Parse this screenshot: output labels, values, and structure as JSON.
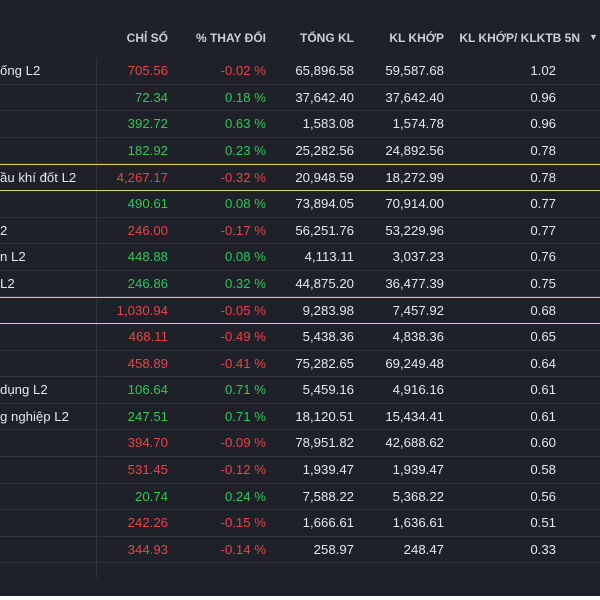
{
  "header": {
    "chi_so": "CHỈ SỐ",
    "thay_doi": "% THAY ĐỔI",
    "tong_kl": "TỔNG KL",
    "kl_khop": "KL KHỚP",
    "ratio": "KL KHỚP/ KLKTB 5N"
  },
  "colors": {
    "up": "#2fc65a",
    "down": "#e8434a",
    "highlight": "#d8d64a"
  },
  "rows": [
    {
      "name": "ống L2",
      "index": "705.56",
      "change": "-0.02 %",
      "dir": "down",
      "total": "65,896.58",
      "matched": "59,587.68",
      "ratio": "1.02",
      "hl": false
    },
    {
      "name": "",
      "index": "72.34",
      "change": "0.18 %",
      "dir": "up",
      "total": "37,642.40",
      "matched": "37,642.40",
      "ratio": "0.96",
      "hl": false
    },
    {
      "name": "",
      "index": "392.72",
      "change": "0.63 %",
      "dir": "up",
      "total": "1,583.08",
      "matched": "1,574.78",
      "ratio": "0.96",
      "hl": false
    },
    {
      "name": "",
      "index": "182.92",
      "change": "0.23 %",
      "dir": "up",
      "total": "25,282.56",
      "matched": "24,892.56",
      "ratio": "0.78",
      "hl": false
    },
    {
      "name": "ầu khí đốt L2",
      "index": "4,267.17",
      "change": "-0.32 %",
      "dir": "down",
      "total": "20,948.59",
      "matched": "18,272.99",
      "ratio": "0.78",
      "hl": true
    },
    {
      "name": "",
      "index": "490.61",
      "change": "0.08 %",
      "dir": "up",
      "total": "73,894.05",
      "matched": "70,914.00",
      "ratio": "0.77",
      "hl": false
    },
    {
      "name": "2",
      "index": "246.00",
      "change": "-0.17 %",
      "dir": "down",
      "total": "56,251.76",
      "matched": "53,229.96",
      "ratio": "0.77",
      "hl": false
    },
    {
      "name": "n L2",
      "index": "448.88",
      "change": "0.08 %",
      "dir": "up",
      "total": "4,113.11",
      "matched": "3,037.23",
      "ratio": "0.76",
      "hl": false
    },
    {
      "name": "L2",
      "index": "246.86",
      "change": "0.32 %",
      "dir": "up",
      "total": "44,875.20",
      "matched": "36,477.39",
      "ratio": "0.75",
      "hl": false
    },
    {
      "name": "",
      "index": "1,030.94",
      "change": "-0.05 %",
      "dir": "down",
      "total": "9,283.98",
      "matched": "7,457.92",
      "ratio": "0.68",
      "hl": true
    },
    {
      "name": "",
      "index": "468.11",
      "change": "-0.49 %",
      "dir": "down",
      "total": "5,438.36",
      "matched": "4,838.36",
      "ratio": "0.65",
      "hl": false
    },
    {
      "name": "",
      "index": "458.89",
      "change": "-0.41 %",
      "dir": "down",
      "total": "75,282.65",
      "matched": "69,249.48",
      "ratio": "0.64",
      "hl": false
    },
    {
      "name": "dụng L2",
      "index": "106.64",
      "change": "0.71 %",
      "dir": "up",
      "total": "5,459.16",
      "matched": "4,916.16",
      "ratio": "0.61",
      "hl": false
    },
    {
      "name": "g nghiệp L2",
      "index": "247.51",
      "change": "0.71 %",
      "dir": "up",
      "total": "18,120.51",
      "matched": "15,434.41",
      "ratio": "0.61",
      "hl": false
    },
    {
      "name": "",
      "index": "394.70",
      "change": "-0.09 %",
      "dir": "down",
      "total": "78,951.82",
      "matched": "42,688.62",
      "ratio": "0.60",
      "hl": false
    },
    {
      "name": "",
      "index": "531.45",
      "change": "-0.12 %",
      "dir": "down",
      "total": "1,939.47",
      "matched": "1,939.47",
      "ratio": "0.58",
      "hl": false
    },
    {
      "name": "",
      "index": "20.74",
      "change": "0.24 %",
      "dir": "up",
      "total": "7,588.22",
      "matched": "5,368.22",
      "ratio": "0.56",
      "hl": false
    },
    {
      "name": "",
      "index": "242.26",
      "change": "-0.15 %",
      "dir": "down",
      "total": "1,666.61",
      "matched": "1,636.61",
      "ratio": "0.51",
      "hl": false
    },
    {
      "name": "",
      "index": "344.93",
      "change": "-0.14 %",
      "dir": "down",
      "total": "258.97",
      "matched": "248.47",
      "ratio": "0.33",
      "hl": false
    }
  ]
}
